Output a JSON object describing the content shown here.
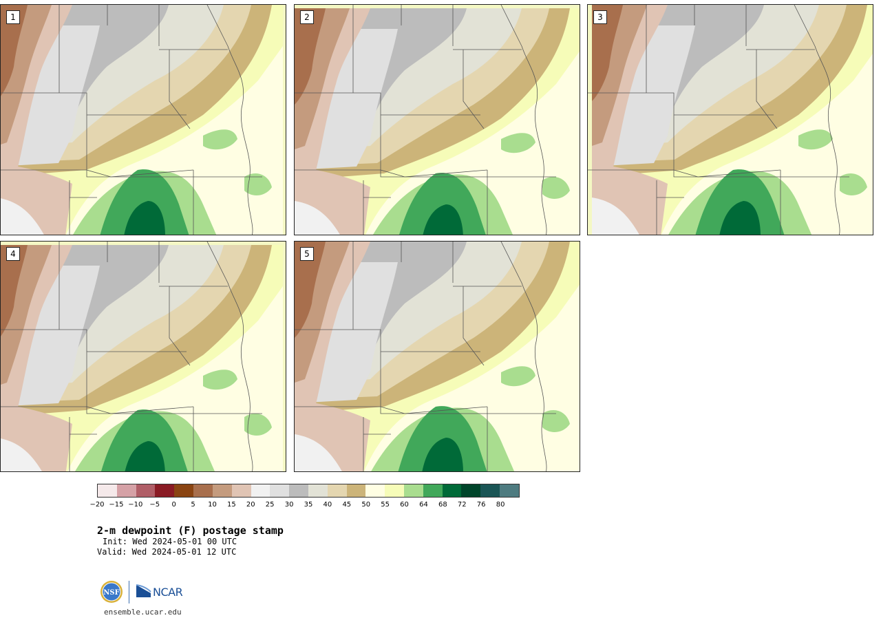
{
  "panels": [
    {
      "label": "1"
    },
    {
      "label": "2"
    },
    {
      "label": "3"
    },
    {
      "label": "4"
    },
    {
      "label": "5"
    }
  ],
  "colorbar": {
    "colors": [
      "#f5e9ea",
      "#d5a1a6",
      "#b05e67",
      "#8a1b24",
      "#8a4412",
      "#a86f4d",
      "#c49b7e",
      "#e0c4b4",
      "#f1f1f1",
      "#e0e0e0",
      "#bcbcbc",
      "#e2e2d6",
      "#e4d6b0",
      "#ccb479",
      "#fffee3",
      "#f6fcb8",
      "#a9dd8f",
      "#41a85a",
      "#006a38",
      "#00452a",
      "#1a5555",
      "#4e7b80"
    ],
    "tick_labels": [
      "−20",
      "−15",
      "−10",
      "−5",
      "0",
      "5",
      "10",
      "15",
      "20",
      "25",
      "30",
      "35",
      "40",
      "45",
      "50",
      "55",
      "60",
      "64",
      "68",
      "72",
      "76",
      "80"
    ]
  },
  "title": "2-m dewpoint (F) postage stamp",
  "init_line": "Init: Wed 2024-05-01 00 UTC",
  "valid_line": "Valid: Wed 2024-05-01 12 UTC",
  "logos": {
    "nsf": "NSF",
    "ncar": "NCAR"
  },
  "site": "ensemble.ucar.edu"
}
